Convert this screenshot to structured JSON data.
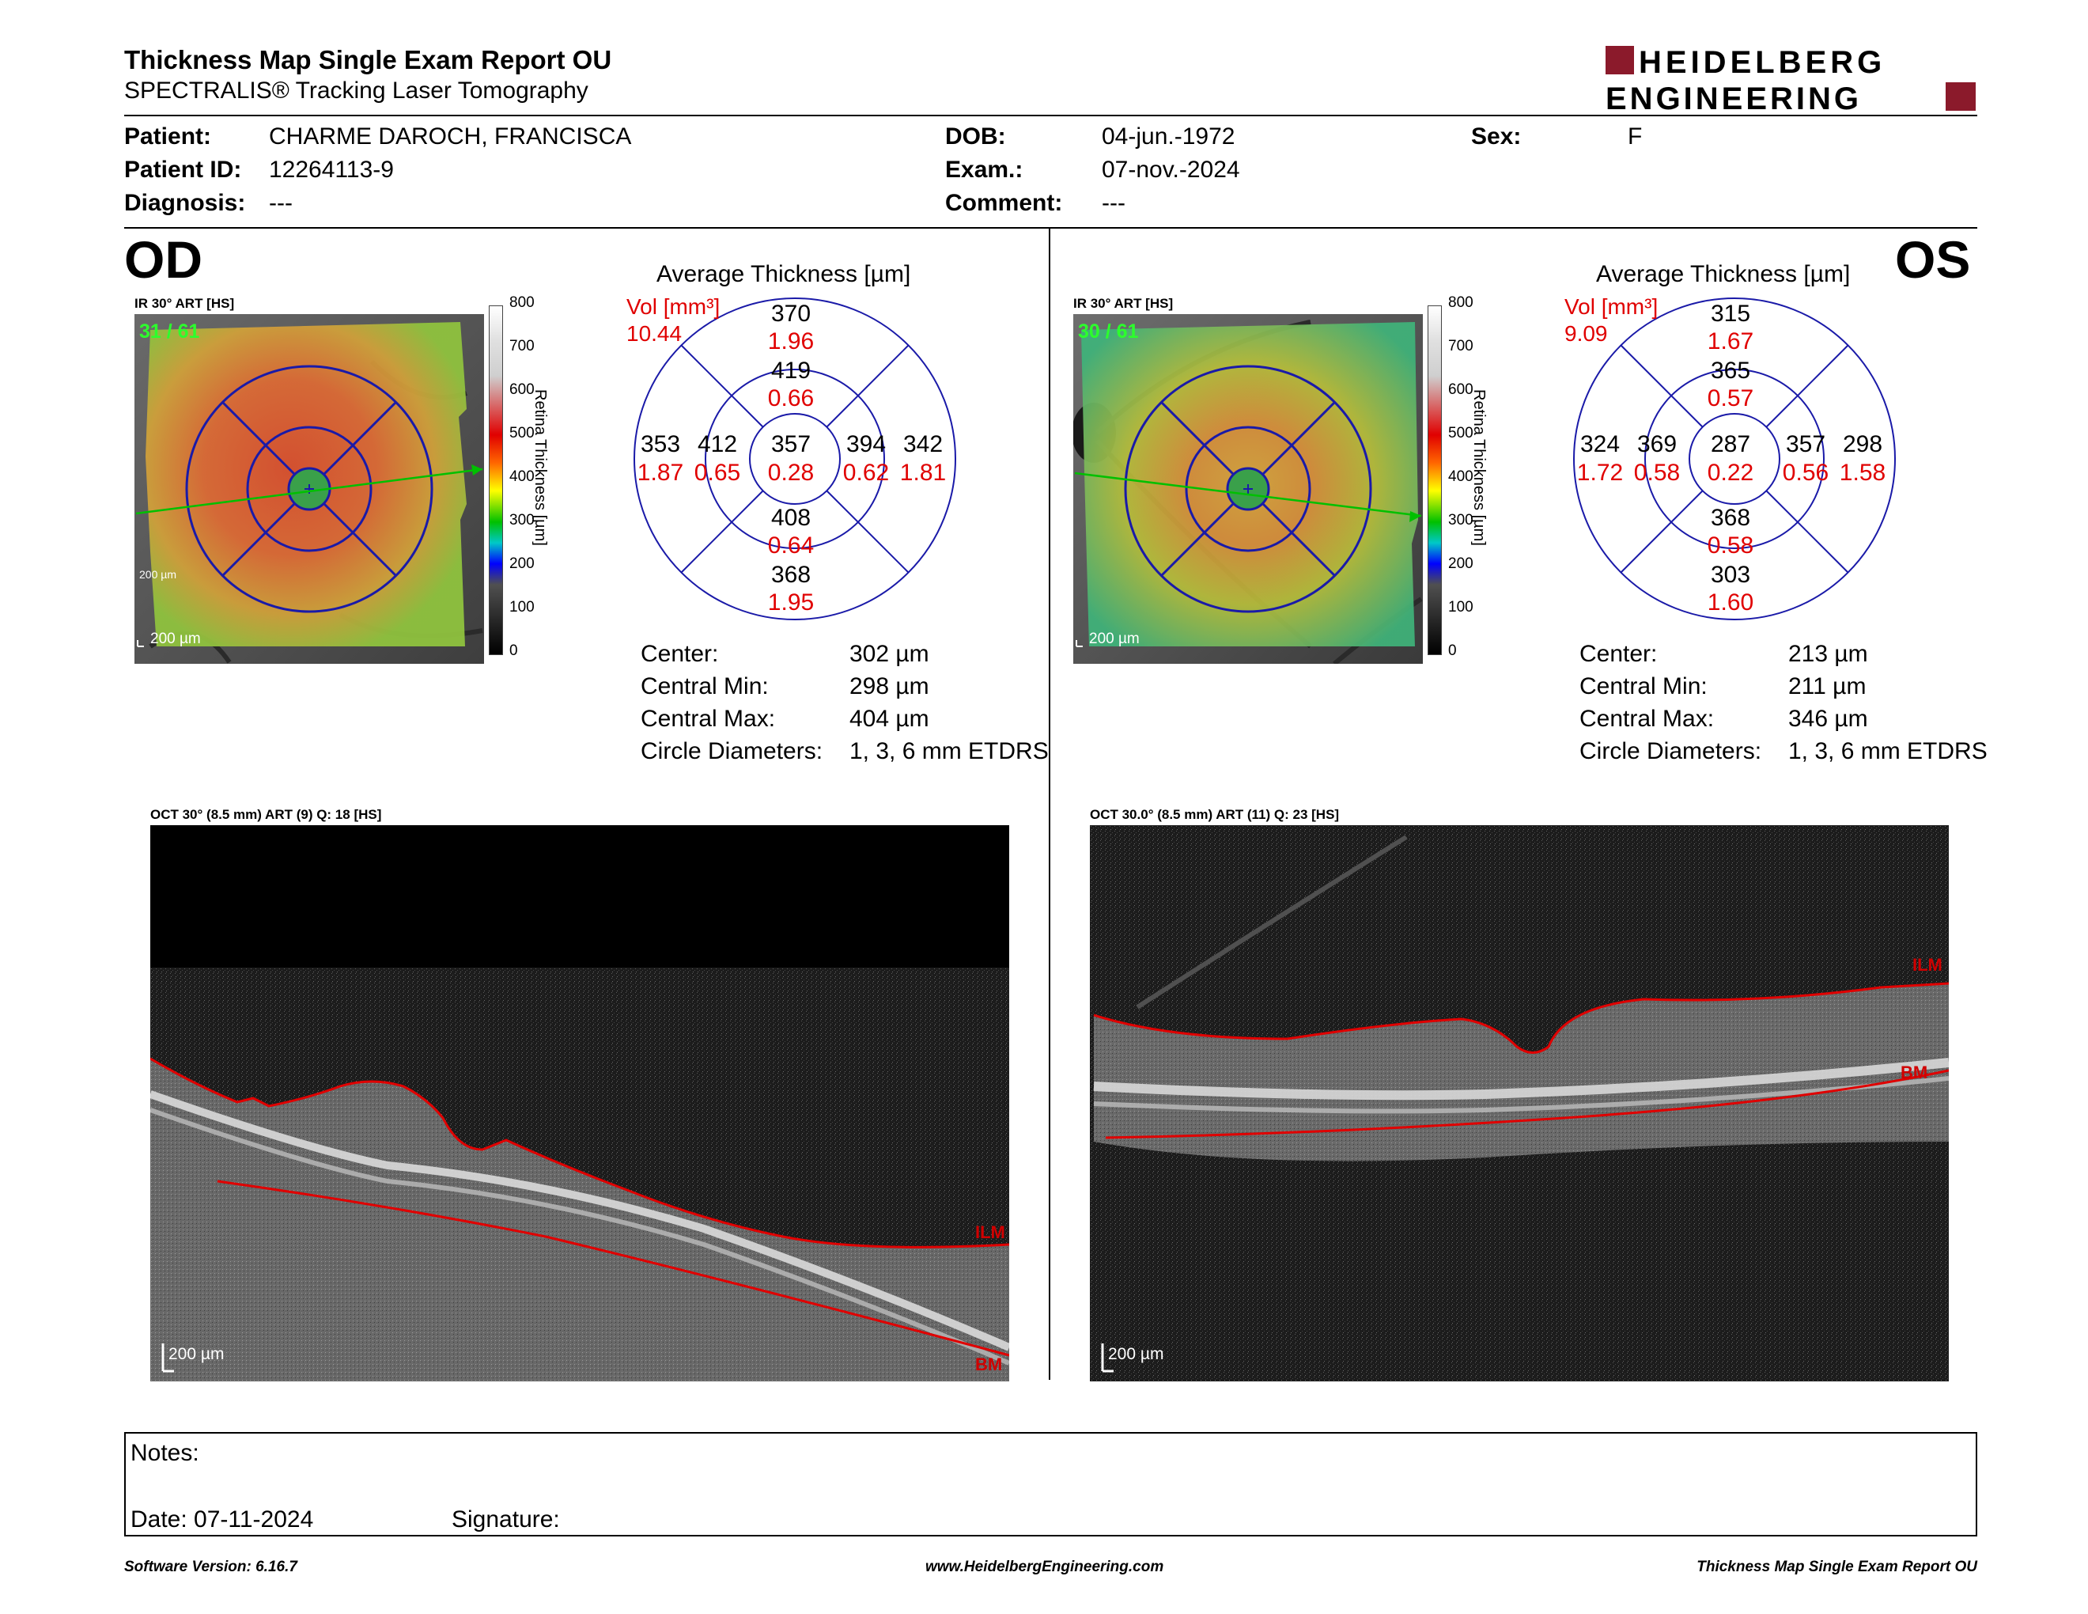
{
  "header": {
    "title": "Thickness Map Single Exam Report OU",
    "subtitle": "SPECTRALIS® Tracking Laser Tomography",
    "logo_line1": "HEIDELBERG",
    "logo_line2": "ENGINEERING"
  },
  "patient": {
    "patient_label": "Patient:",
    "patient_value": "CHARME DAROCH, FRANCISCA",
    "id_label": "Patient ID:",
    "id_value": "12264113-9",
    "diagnosis_label": "Diagnosis:",
    "diagnosis_value": "---",
    "dob_label": "DOB:",
    "dob_value": "04-jun.-1972",
    "exam_label": "Exam.:",
    "exam_value": "07-nov.-2024",
    "comment_label": "Comment:",
    "comment_value": "---",
    "sex_label": "Sex:",
    "sex_value": "F"
  },
  "od": {
    "eye": "OD",
    "fundus_label": "IR 30° ART [HS]",
    "frame_count": "31 / 61",
    "scale": "200 µm",
    "avg_title": "Average Thickness [µm]",
    "vol_label": "Vol [mm³]",
    "vol_value": "10.44",
    "sectors": {
      "center": {
        "t": "357",
        "v": "0.28"
      },
      "inner_sup": {
        "t": "419",
        "v": "0.66"
      },
      "inner_inf": {
        "t": "408",
        "v": "0.64"
      },
      "inner_left": {
        "t": "412",
        "v": "0.65"
      },
      "inner_right": {
        "t": "394",
        "v": "0.62"
      },
      "outer_sup": {
        "t": "370",
        "v": "1.96"
      },
      "outer_inf": {
        "t": "368",
        "v": "1.95"
      },
      "outer_left": {
        "t": "353",
        "v": "1.87"
      },
      "outer_right": {
        "t": "342",
        "v": "1.81"
      }
    },
    "stats": {
      "center_label": "Center:",
      "center_value": "302 µm",
      "min_label": "Central Min:",
      "min_value": "298 µm",
      "max_label": "Central Max:",
      "max_value": "404 µm",
      "diam_label": "Circle Diameters:",
      "diam_value": "1, 3, 6 mm ETDRS"
    },
    "oct_label": "OCT 30° (8.5 mm) ART (9) Q: 18 [HS]",
    "oct_scale": "200 µm",
    "ilm": "ILM",
    "bm": "BM"
  },
  "os": {
    "eye": "OS",
    "fundus_label": "IR 30° ART [HS]",
    "frame_count": "30 / 61",
    "scale": "200 µm",
    "avg_title": "Average Thickness [µm]",
    "vol_label": "Vol [mm³]",
    "vol_value": "9.09",
    "sectors": {
      "center": {
        "t": "287",
        "v": "0.22"
      },
      "inner_sup": {
        "t": "365",
        "v": "0.57"
      },
      "inner_inf": {
        "t": "368",
        "v": "0.58"
      },
      "inner_left": {
        "t": "369",
        "v": "0.58"
      },
      "inner_right": {
        "t": "357",
        "v": "0.56"
      },
      "outer_sup": {
        "t": "315",
        "v": "1.67"
      },
      "outer_inf": {
        "t": "303",
        "v": "1.60"
      },
      "outer_left": {
        "t": "324",
        "v": "1.72"
      },
      "outer_right": {
        "t": "298",
        "v": "1.58"
      }
    },
    "stats": {
      "center_label": "Center:",
      "center_value": "213 µm",
      "min_label": "Central Min:",
      "min_value": "211 µm",
      "max_label": "Central Max:",
      "max_value": "346 µm",
      "diam_label": "Circle Diameters:",
      "diam_value": "1, 3, 6 mm ETDRS"
    },
    "oct_label": "OCT 30.0° (8.5 mm) ART (11) Q: 23 [HS]",
    "oct_scale": "200 µm",
    "ilm": "ILM",
    "bm": "BM"
  },
  "colorbar": {
    "ticks": [
      "800",
      "700",
      "600",
      "500",
      "400",
      "300",
      "200",
      "100",
      "0"
    ],
    "title": "Retina  Thickness [µm]"
  },
  "notes": {
    "notes_label": "Notes:",
    "date_label": "Date: 07-11-2024",
    "signature_label": "Signature:"
  },
  "footer": {
    "version": "Software Version: 6.16.7",
    "url": "www.HeidelbergEngineering.com",
    "report": "Thickness Map Single Exam Report OU"
  },
  "colors": {
    "logo_red": "#8b1a2b",
    "value_red": "#e00000",
    "grid_blue": "#1a1aa8",
    "green_line": "#00c000"
  }
}
